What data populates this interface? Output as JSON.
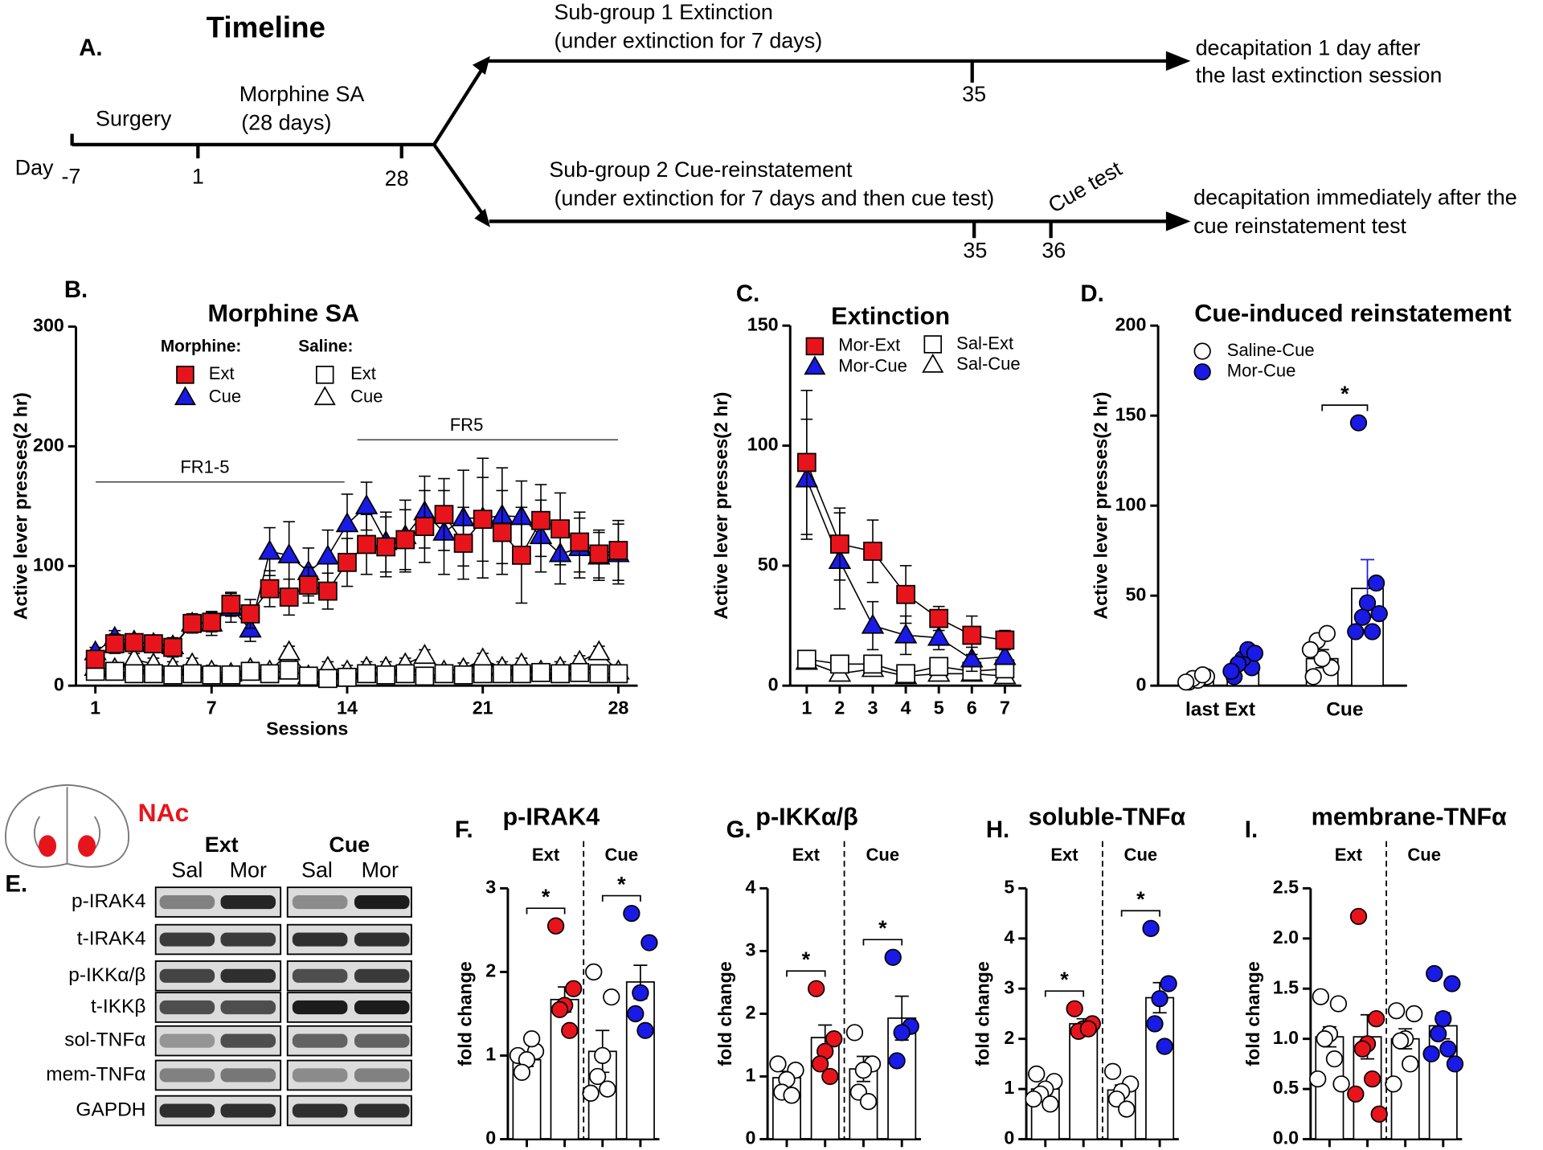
{
  "timeline": {
    "panel_label": "A.",
    "title": "Timeline",
    "day_label": "Day",
    "days": [
      "-7",
      "1",
      "28"
    ],
    "phases": [
      "Surgery",
      "Morphine SA",
      "(28 days)"
    ],
    "branch1": {
      "title": "Sub-group 1 Extinction",
      "subtitle": "(under extinction for 7 days)",
      "days": [
        "35"
      ],
      "outcome": [
        "decapitation 1 day after",
        "the last extinction session"
      ]
    },
    "branch2": {
      "title": "Sub-group 2 Cue-reinstatement",
      "subtitle": "(under extinction for 7 days and then cue test)",
      "event": "Cue test",
      "days": [
        "35",
        "36"
      ],
      "outcome": [
        "decapitation immediately after the",
        "cue reinstatement test"
      ]
    }
  },
  "blot": {
    "panel_label": "E.",
    "region": "NAc",
    "groups": [
      "Ext",
      "Cue"
    ],
    "lanes": [
      "Sal",
      "Mor",
      "Sal",
      "Mor"
    ],
    "rows": [
      "p-IRAK4",
      "t-IRAK4",
      "p-IKKα/β",
      "t-IKKβ",
      "sol-TNFα",
      "mem-TNFα",
      "GAPDH"
    ]
  },
  "chart_data": [
    {
      "type": "line",
      "label": "B.",
      "title": "Morphine SA",
      "xlabel": "Sessions",
      "ylabel": "Active lever presses(2 hr)",
      "legend_headers": [
        "Morphine:",
        "Saline:"
      ],
      "annotations": [
        "FR1-5",
        "FR5"
      ],
      "x": [
        1,
        2,
        3,
        4,
        5,
        6,
        7,
        8,
        9,
        10,
        11,
        12,
        13,
        14,
        15,
        16,
        17,
        18,
        19,
        20,
        21,
        22,
        23,
        24,
        25,
        26,
        27,
        28
      ],
      "xlim": [
        0,
        29
      ],
      "ylim": [
        0,
        300
      ],
      "xticks": [
        1,
        7,
        14,
        21,
        28
      ],
      "yticks": [
        0,
        100,
        200,
        300
      ],
      "series": [
        {
          "name": "Ext",
          "color": "#e8141c",
          "marker": "square",
          "values": [
            22,
            35,
            36,
            35,
            32,
            52,
            53,
            68,
            60,
            81,
            74,
            84,
            79,
            103,
            118,
            116,
            122,
            133,
            143,
            119,
            139,
            128,
            109,
            138,
            131,
            120,
            110,
            113
          ],
          "errors": [
            5,
            8,
            6,
            6,
            8,
            8,
            8,
            10,
            12,
            15,
            15,
            15,
            15,
            20,
            25,
            25,
            25,
            30,
            30,
            30,
            35,
            35,
            40,
            30,
            30,
            25,
            20,
            25
          ]
        },
        {
          "name": "Cue",
          "color": "#1a1ae6",
          "marker": "triangle",
          "values": [
            28,
            40,
            37,
            35,
            33,
            52,
            52,
            65,
            47,
            112,
            109,
            95,
            108,
            135,
            150,
            120,
            125,
            145,
            128,
            140,
            140,
            142,
            141,
            125,
            110,
            115,
            108,
            110
          ],
          "errors": [
            4,
            6,
            6,
            6,
            7,
            8,
            10,
            12,
            10,
            20,
            28,
            20,
            22,
            25,
            20,
            25,
            30,
            30,
            35,
            40,
            50,
            40,
            30,
            30,
            25,
            25,
            20,
            25
          ]
        },
        {
          "name": "Ext",
          "color": "#ffffff",
          "marker": "square",
          "values": [
            12,
            12,
            10,
            10,
            9,
            10,
            9,
            9,
            12,
            10,
            13,
            8,
            6,
            7,
            10,
            9,
            10,
            8,
            10,
            9,
            10,
            10,
            10,
            11,
            10,
            11,
            10,
            10
          ],
          "errors": [
            3,
            3,
            3,
            3,
            3,
            3,
            3,
            3,
            3,
            3,
            3,
            3,
            3,
            3,
            3,
            3,
            3,
            3,
            3,
            3,
            3,
            3,
            3,
            3,
            3,
            3,
            3,
            3
          ]
        },
        {
          "name": "Cue",
          "color": "#ffffff",
          "marker": "triangle",
          "values": [
            15,
            14,
            22,
            18,
            15,
            18,
            12,
            10,
            14,
            12,
            28,
            8,
            15,
            12,
            15,
            15,
            18,
            25,
            12,
            14,
            22,
            15,
            18,
            12,
            15,
            20,
            28,
            12
          ],
          "errors": [
            5,
            5,
            5,
            5,
            5,
            5,
            5,
            5,
            5,
            5,
            5,
            5,
            5,
            5,
            5,
            5,
            5,
            5,
            5,
            5,
            5,
            5,
            5,
            5,
            5,
            5,
            5,
            5
          ]
        }
      ]
    },
    {
      "type": "line",
      "label": "C.",
      "title": "Extinction",
      "ylabel": "Active lever presses(2 hr)",
      "x": [
        1,
        2,
        3,
        4,
        5,
        6,
        7
      ],
      "xlim": [
        0.5,
        7.5
      ],
      "ylim": [
        0,
        150
      ],
      "xticks": [
        1,
        2,
        3,
        4,
        5,
        6,
        7
      ],
      "yticks": [
        0,
        50,
        100,
        150
      ],
      "series": [
        {
          "name": "Mor-Ext",
          "color": "#e8141c",
          "marker": "square",
          "values": [
            93,
            59,
            56,
            38,
            28,
            21,
            19
          ],
          "errors": [
            30,
            15,
            13,
            12,
            5,
            8,
            4
          ]
        },
        {
          "name": "Mor-Cue",
          "color": "#1a1ae6",
          "marker": "triangle",
          "values": [
            86,
            52,
            25,
            21,
            20,
            11,
            12
          ],
          "errors": [
            25,
            20,
            10,
            8,
            5,
            5,
            3
          ]
        },
        {
          "name": "Sal-Ext",
          "color": "#ffffff",
          "marker": "square",
          "values": [
            11,
            9,
            9,
            5,
            8,
            6,
            7
          ],
          "errors": [
            2,
            2,
            2,
            2,
            2,
            2,
            2
          ]
        },
        {
          "name": "Sal-Cue",
          "color": "#ffffff",
          "marker": "triangle",
          "values": [
            10,
            5,
            7,
            4,
            5,
            5,
            4
          ],
          "errors": [
            2,
            2,
            2,
            2,
            2,
            2,
            2
          ]
        }
      ]
    },
    {
      "type": "dotbar",
      "label": "D.",
      "title": "Cue-induced reinstatement",
      "ylabel": "Active lever presses(2 hr)",
      "categories": [
        "last Ext",
        "Cue"
      ],
      "ylim": [
        0,
        200
      ],
      "yticks": [
        0,
        50,
        100,
        150,
        200
      ],
      "significance": [
        null,
        "*"
      ],
      "series": [
        {
          "name": "Saline-Cue",
          "color": "#ffffff",
          "values": [
            4,
            15
          ],
          "errors": [
            1,
            5
          ],
          "points": [
            [
              2,
              5,
              3,
              4,
              6,
              2
            ],
            [
              5,
              10,
              15,
              25,
              29,
              20
            ]
          ]
        },
        {
          "name": "Mor-Cue",
          "color": "#1a1ae6",
          "values": [
            11,
            54
          ],
          "errors": [
            2,
            16
          ],
          "points": [
            [
              5,
              10,
              15,
              12,
              20,
              8,
              18
            ],
            [
              146,
              57,
              46,
              38,
              30,
              30,
              40
            ]
          ]
        }
      ]
    },
    {
      "type": "dotbar",
      "label": "F.",
      "title": "p-IRAK4",
      "ylabel": "fold change",
      "groups": [
        "Ext",
        "Cue"
      ],
      "significance": [
        "*",
        "*"
      ],
      "categories": [
        null,
        null,
        null,
        null
      ],
      "ylim": [
        0,
        3
      ],
      "yticks": [
        0,
        1,
        2,
        3
      ],
      "series": [
        {
          "values": [
            0.95,
            1.67,
            1.05,
            1.88
          ],
          "errors": [
            0.08,
            0.15,
            0.25,
            0.2
          ],
          "point_colors": [
            "#ffffff",
            "#e8141c",
            "#ffffff",
            "#1a1ae6"
          ],
          "points": [
            [
              1.0,
              1.05,
              0.95,
              0.8,
              1.2
            ],
            [
              2.55,
              1.8,
              1.6,
              1.55,
              1.3
            ],
            [
              2.0,
              1.7,
              1.0,
              0.75,
              0.6,
              0.55
            ],
            [
              2.7,
              2.35,
              1.75,
              1.5,
              1.3
            ]
          ]
        }
      ]
    },
    {
      "type": "dotbar",
      "label": "G.",
      "title": "p-IKKα/β",
      "ylabel": "fold change",
      "groups": [
        "Ext",
        "Cue"
      ],
      "significance": [
        "*",
        "*"
      ],
      "categories": [
        null,
        null,
        null,
        null
      ],
      "ylim": [
        0,
        4
      ],
      "yticks": [
        0,
        1,
        2,
        3,
        4
      ],
      "series": [
        {
          "values": [
            0.98,
            1.62,
            1.12,
            1.93
          ],
          "errors": [
            0.1,
            0.2,
            0.2,
            0.35
          ],
          "point_colors": [
            "#ffffff",
            "#e8141c",
            "#ffffff",
            "#1a1ae6"
          ],
          "points": [
            [
              1.2,
              1.1,
              0.95,
              0.75,
              0.7
            ],
            [
              2.4,
              1.6,
              1.4,
              1.2,
              1.0
            ],
            [
              1.7,
              1.2,
              1.1,
              0.75,
              0.6
            ],
            [
              2.9,
              1.8,
              1.7,
              1.25
            ]
          ]
        }
      ]
    },
    {
      "type": "dotbar",
      "label": "H.",
      "title": "soluble-TNFα",
      "ylabel": "fold change",
      "groups": [
        "Ext",
        "Cue"
      ],
      "significance": [
        "*",
        "*"
      ],
      "categories": [
        null,
        null,
        null,
        null
      ],
      "ylim": [
        0,
        5
      ],
      "yticks": [
        0,
        1,
        2,
        3,
        4,
        5
      ],
      "series": [
        {
          "values": [
            1.0,
            2.3,
            0.98,
            2.82
          ],
          "errors": [
            0.1,
            0.1,
            0.1,
            0.3
          ],
          "point_colors": [
            "#ffffff",
            "#e8141c",
            "#ffffff",
            "#1a1ae6"
          ],
          "points": [
            [
              1.3,
              1.15,
              1.0,
              0.9,
              0.7,
              0.8
            ],
            [
              2.6,
              2.3,
              2.2,
              2.15,
              2.2
            ],
            [
              1.35,
              1.1,
              0.95,
              0.8,
              0.6
            ],
            [
              4.2,
              3.1,
              2.8,
              2.3,
              1.85
            ]
          ]
        }
      ]
    },
    {
      "type": "dotbar",
      "label": "I.",
      "title": "membrane-TNFα",
      "ylabel": "fold change",
      "groups": [
        "Ext",
        "Cue"
      ],
      "significance": [
        null,
        null
      ],
      "categories": [
        null,
        null,
        null,
        null
      ],
      "ylim": [
        0,
        2.5
      ],
      "yticks": [
        {
          "value": 0,
          "label": "0.0"
        },
        0.5,
        {
          "value": 1,
          "label": "1.0"
        },
        1.5,
        {
          "value": 2,
          "label": "2.0"
        },
        2.5
      ],
      "series": [
        {
          "values": [
            1.02,
            1.02,
            1.0,
            1.13
          ],
          "errors": [
            0.1,
            0.22,
            0.1,
            0.13
          ],
          "point_colors": [
            "#ffffff",
            "#e8141c",
            "#ffffff",
            "#1a1ae6"
          ],
          "points": [
            [
              1.42,
              1.35,
              1.05,
              1.0,
              0.8,
              0.6,
              0.55
            ],
            [
              2.22,
              1.2,
              0.95,
              0.9,
              0.6,
              0.45,
              0.25
            ],
            [
              1.28,
              1.25,
              1.0,
              0.98,
              0.75,
              0.55
            ],
            [
              1.65,
              1.55,
              1.2,
              1.05,
              0.9,
              0.85,
              0.75
            ]
          ]
        }
      ]
    }
  ]
}
